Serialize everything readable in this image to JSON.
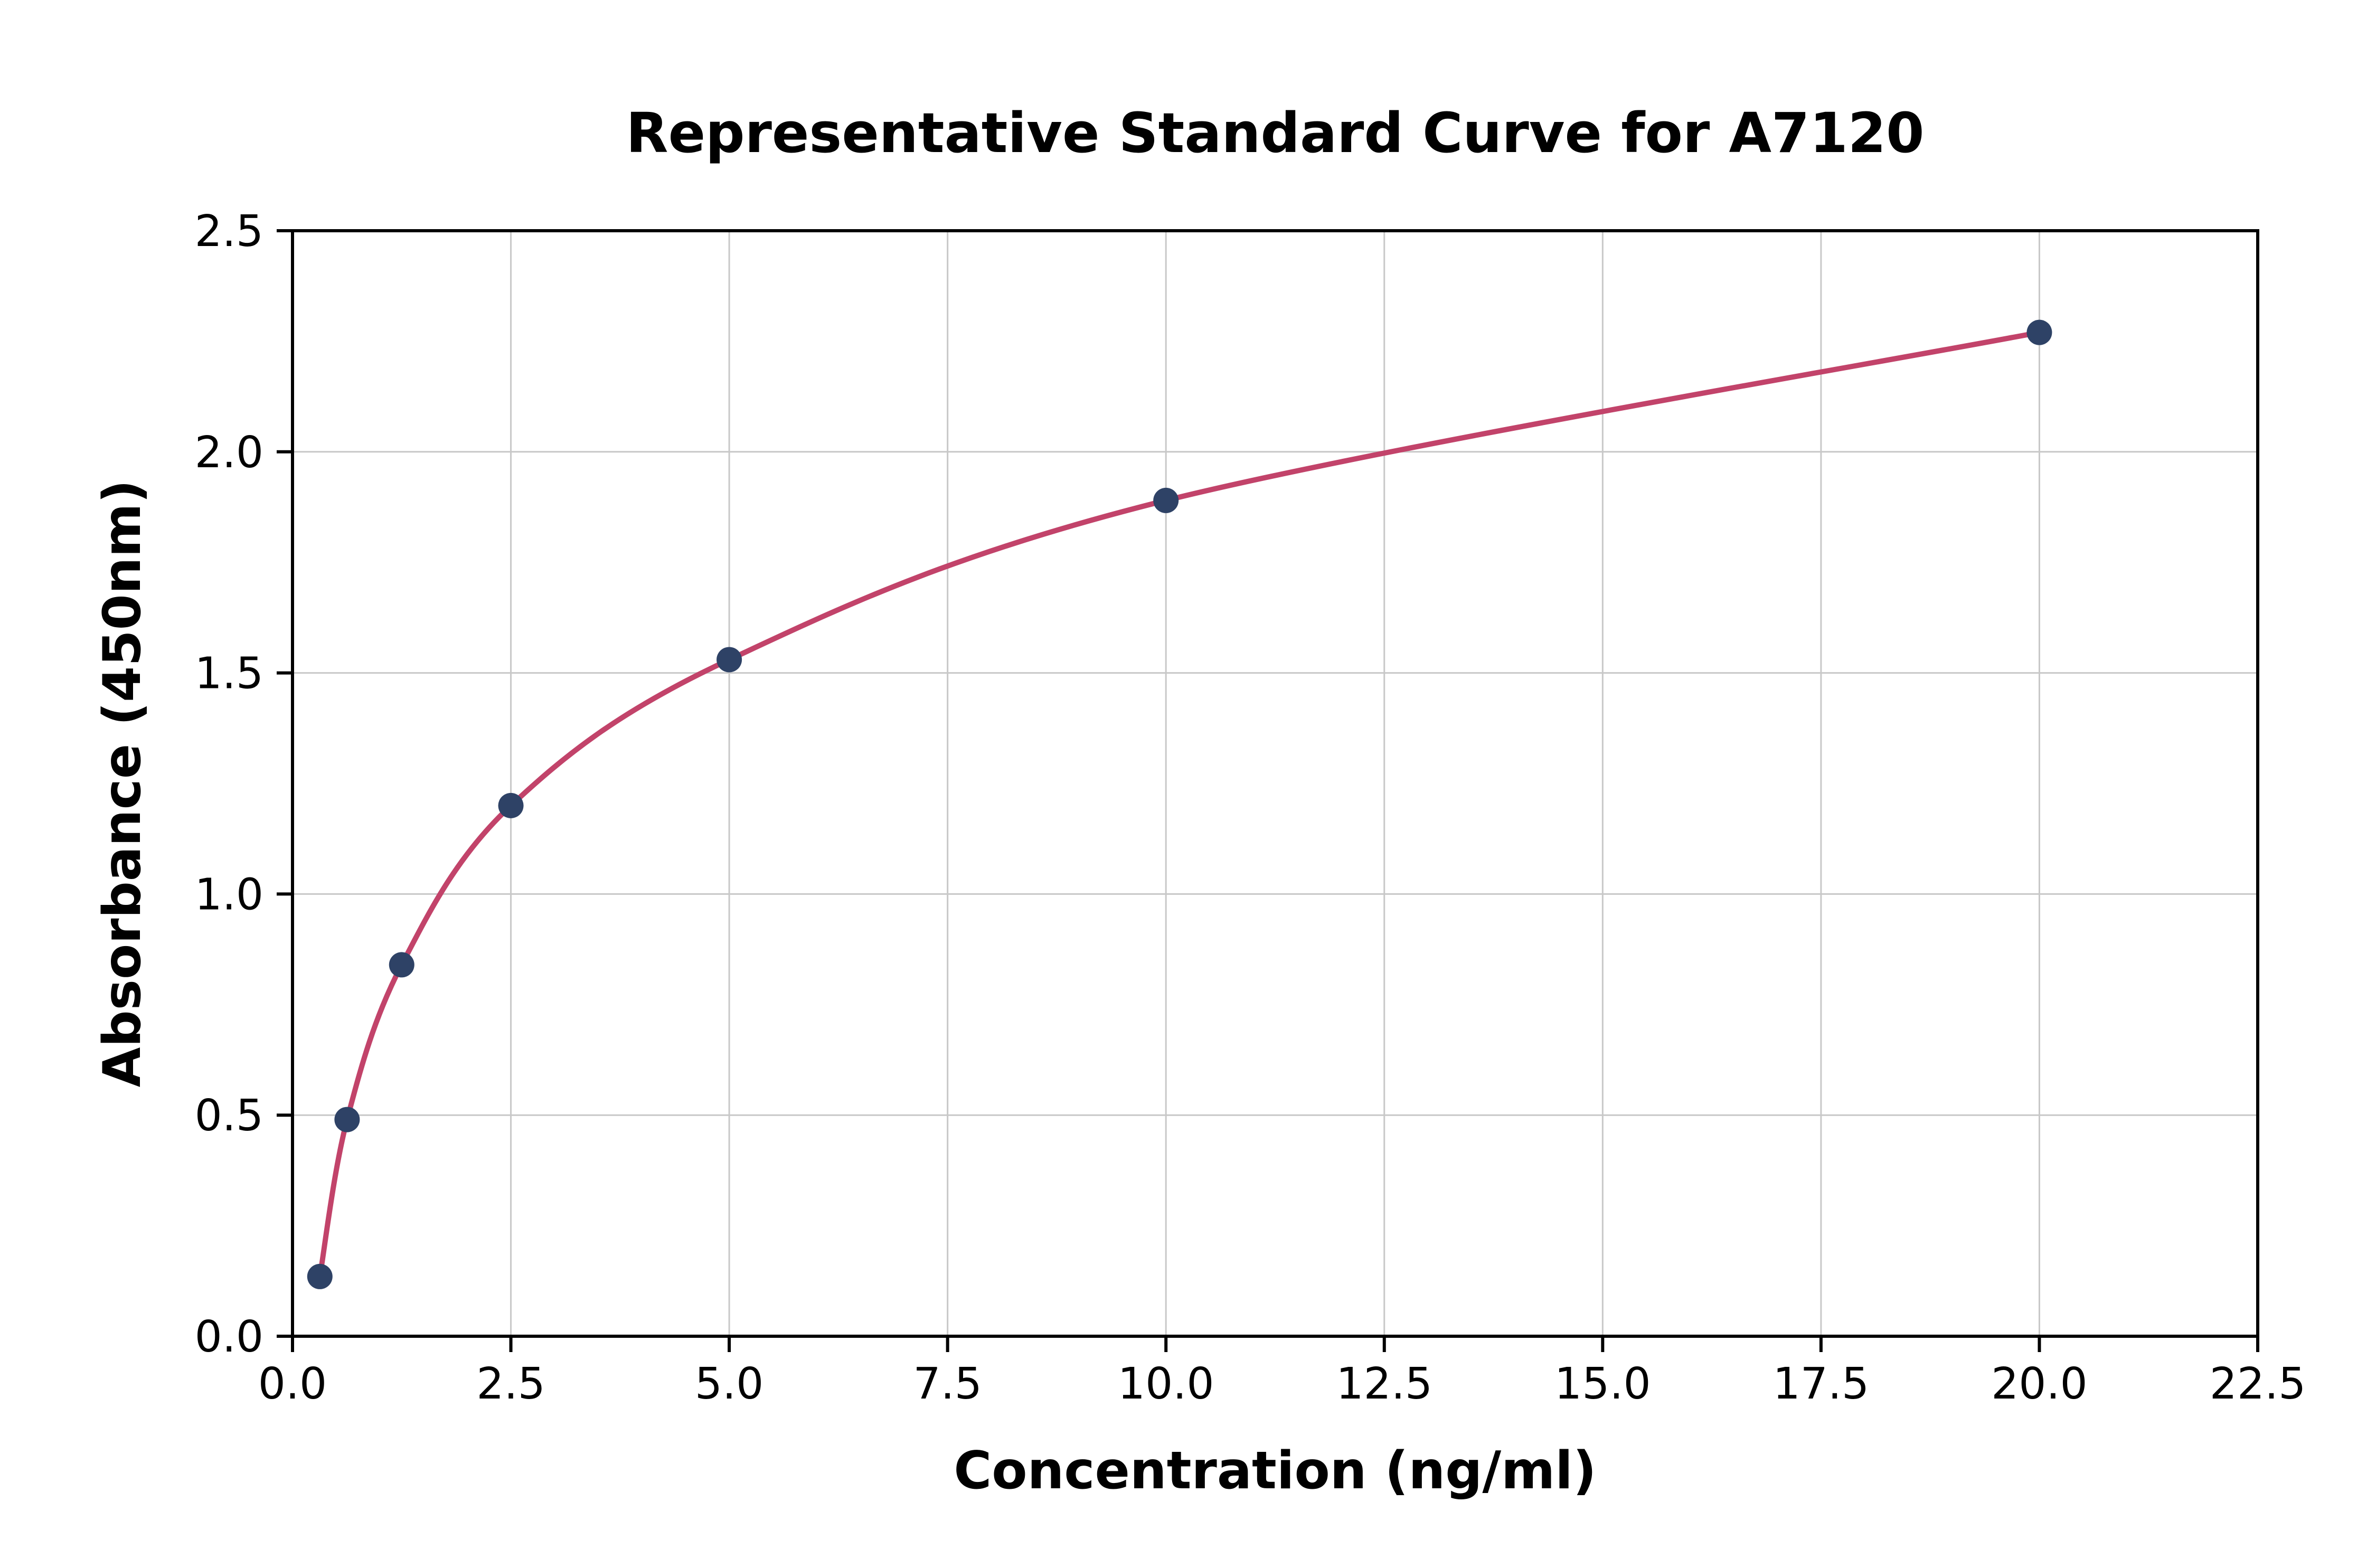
{
  "chart_data": {
    "type": "scatter",
    "title": "Representative Standard Curve for A7120",
    "xlabel": "Concentration (ng/ml)",
    "ylabel": "Absorbance (450nm)",
    "x": [
      0.313,
      0.625,
      1.25,
      2.5,
      5.0,
      10.0,
      20.0
    ],
    "y": [
      0.135,
      0.49,
      0.84,
      1.2,
      1.53,
      1.89,
      2.27
    ],
    "curve": "smooth saturating fit through all data points",
    "xlim": [
      0,
      22.5
    ],
    "ylim": [
      0,
      2.5
    ],
    "x_ticks": [
      0,
      2.5,
      5,
      7.5,
      10,
      12.5,
      15,
      17.5,
      20,
      22.5
    ],
    "x_tick_labels": [
      "0.0",
      "2.5",
      "5.0",
      "7.5",
      "10.0",
      "12.5",
      "15.0",
      "17.5",
      "20.0",
      "22.5"
    ],
    "y_ticks": [
      0,
      0.5,
      1,
      1.5,
      2,
      2.5
    ],
    "y_tick_labels": [
      "0.0",
      "0.5",
      "1.0",
      "1.5",
      "2.0",
      "2.5"
    ],
    "grid": true,
    "legend": "none",
    "line_color": "#c2436a",
    "point_color": "#2e4266",
    "grid_color": "#c8c8c8",
    "axis_color": "#000000"
  }
}
